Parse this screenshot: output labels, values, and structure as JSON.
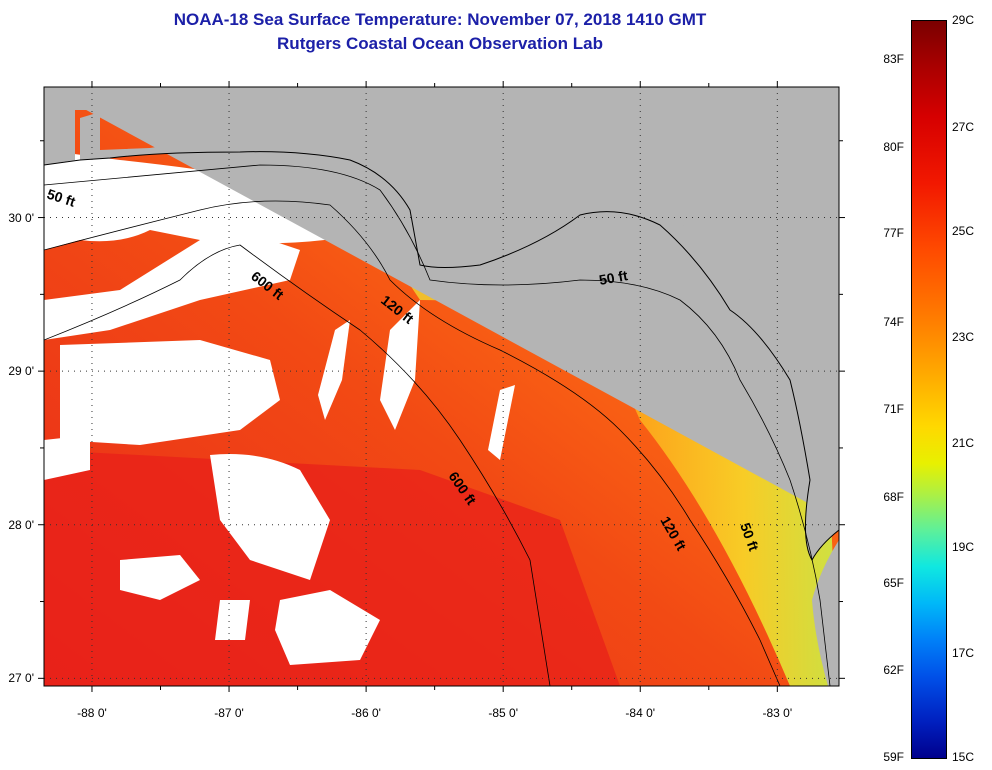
{
  "title": {
    "line1": "NOAA-18 Sea Surface Temperature:  November 07, 2018 1410 GMT",
    "line2": "Rutgers Coastal Ocean Observation Lab"
  },
  "map": {
    "lon_range": [
      -88.35,
      -82.55
    ],
    "lat_range": [
      26.95,
      30.85
    ],
    "lat_ticks": [
      {
        "value": 30,
        "label": "30 0'"
      },
      {
        "value": 29,
        "label": "29 0'"
      },
      {
        "value": 28,
        "label": "28 0'"
      },
      {
        "value": 27,
        "label": "27 0'"
      }
    ],
    "lon_ticks": [
      {
        "value": -88,
        "label": "-88 0'"
      },
      {
        "value": -87,
        "label": "-87 0'"
      },
      {
        "value": -86,
        "label": "-86 0'"
      },
      {
        "value": -85,
        "label": "-85 0'"
      },
      {
        "value": -84,
        "label": "-84 0'"
      },
      {
        "value": -83,
        "label": "-83 0'"
      }
    ],
    "depth_labels": [
      "50 ft",
      "600 ft",
      "120 ft",
      "50 ft",
      "600 ft",
      "120 ft",
      "50 ft"
    ],
    "colors": {
      "land": "#b4b4b4",
      "cloud": "#ffffff",
      "warm": "#f03c10",
      "mid": "#ff8c10",
      "cool": "#f0e020"
    }
  },
  "colorbar": {
    "fahrenheit": [
      "83F",
      "80F",
      "77F",
      "74F",
      "71F",
      "68F",
      "65F",
      "62F",
      "59F"
    ],
    "celsius": [
      "29C",
      "27C",
      "25C",
      "23C",
      "21C",
      "19C",
      "17C",
      "15C"
    ]
  }
}
